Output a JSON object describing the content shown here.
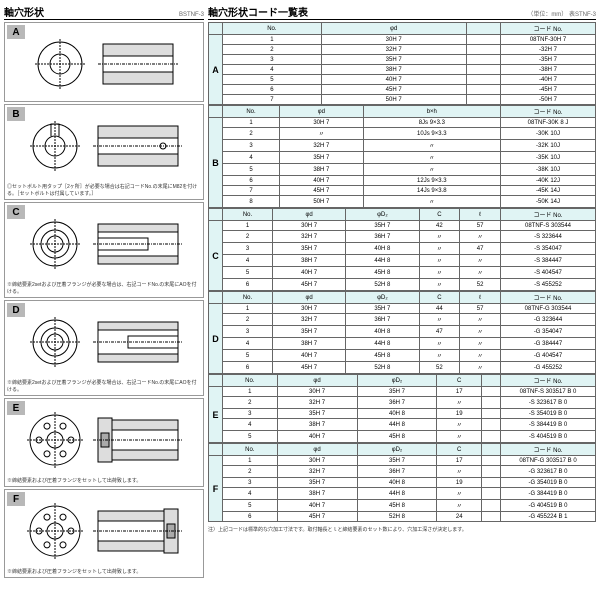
{
  "left": {
    "title": "軸穴形状",
    "code": "BSTNF-3",
    "sections": [
      {
        "id": "A",
        "labels": [
          "フランジ側",
          "パネ側"
        ],
        "dim": "φd"
      },
      {
        "id": "B",
        "labels": [
          "b",
          "φd",
          "参2-M8",
          "16"
        ],
        "note": "◎セットボルト用タップ［2ヶ所］が必要な場合は右記コードNo.の末尾にM82を付ける。［セットボルトは付属しています。］",
        "dims": [
          "b",
          "φd"
        ]
      },
      {
        "id": "C",
        "labels": [
          "C",
          "φD₂",
          "φd"
        ],
        "note": "※締結要素2setおよび圧着フランジが必要な場合は、右記コードNo.の末尾にAOを付ける。"
      },
      {
        "id": "D",
        "labels": [
          "C",
          "φd",
          "φD₂"
        ],
        "note": "※締結要素2setおよび圧着フランジが必要な場合は、右記コードNo.の末尾にAOを付ける。"
      },
      {
        "id": "E",
        "labels": [
          "C",
          "φD₂"
        ],
        "note": "※締結要素および圧着フランジをセットして出荷致します。"
      },
      {
        "id": "F",
        "labels": [
          "C",
          "φD₂"
        ],
        "note": "※締結要素および圧着フランジをセットして出荷致します。"
      }
    ]
  },
  "right": {
    "title": "軸穴形状コード一覧表",
    "unit": "（単位：mm）",
    "code": "表STNF-3",
    "groups": [
      {
        "id": "A",
        "headers": [
          "No.",
          "φd",
          "",
          "コード No."
        ],
        "rows": [
          [
            "1",
            "30H 7",
            "",
            "08TNF-30H 7"
          ],
          [
            "2",
            "32H 7",
            "",
            "-32H 7"
          ],
          [
            "3",
            "35H 7",
            "",
            "-35H 7"
          ],
          [
            "4",
            "38H 7",
            "",
            "-38H 7"
          ],
          [
            "5",
            "40H 7",
            "",
            "-40H 7"
          ],
          [
            "6",
            "45H 7",
            "",
            "-45H 7"
          ],
          [
            "7",
            "50H 7",
            "",
            "-50H 7"
          ]
        ]
      },
      {
        "id": "B",
        "headers": [
          "No.",
          "φd",
          "b×h",
          "コード No."
        ],
        "rows": [
          [
            "1",
            "30H 7",
            "8Js 9×3.3",
            "08TNF-30K 8 J"
          ],
          [
            "2",
            "〃",
            "10Js 9×3.3",
            "-30K 10J"
          ],
          [
            "3",
            "32H 7",
            "〃",
            "-32K 10J"
          ],
          [
            "4",
            "35H 7",
            "〃",
            "-35K 10J"
          ],
          [
            "5",
            "38H 7",
            "〃",
            "-38K 10J"
          ],
          [
            "6",
            "40H 7",
            "12Js 9×3.3",
            "-40K 12J"
          ],
          [
            "7",
            "45H 7",
            "14Js 9×3.8",
            "-45K 14J"
          ],
          [
            "8",
            "50H 7",
            "〃",
            "-50K 14J"
          ]
        ]
      },
      {
        "id": "C",
        "headers": [
          "No.",
          "φd",
          "φD₂",
          "C",
          "ℓ",
          "コード No."
        ],
        "rows": [
          [
            "1",
            "30H 7",
            "35H 7",
            "42",
            "57",
            "08TNF-S 303544"
          ],
          [
            "2",
            "32H 7",
            "36H 7",
            "〃",
            "〃",
            "-S 323644"
          ],
          [
            "3",
            "35H 7",
            "40H 8",
            "〃",
            "47",
            "-S 354047"
          ],
          [
            "4",
            "38H 7",
            "44H 8",
            "〃",
            "〃",
            "-S 384447"
          ],
          [
            "5",
            "40H 7",
            "45H 8",
            "〃",
            "〃",
            "-S 404547"
          ],
          [
            "6",
            "45H 7",
            "52H 8",
            "〃",
            "52",
            "-S 455252"
          ]
        ]
      },
      {
        "id": "D",
        "headers": [
          "No.",
          "φd",
          "φD₂",
          "C",
          "ℓ",
          "コード No."
        ],
        "rows": [
          [
            "1",
            "30H 7",
            "35H 7",
            "44",
            "57",
            "08TNF-G 303544"
          ],
          [
            "2",
            "32H 7",
            "36H 7",
            "〃",
            "〃",
            "-G 323644"
          ],
          [
            "3",
            "35H 7",
            "40H 8",
            "47",
            "〃",
            "-G 354047"
          ],
          [
            "4",
            "38H 7",
            "44H 8",
            "〃",
            "〃",
            "-G 384447"
          ],
          [
            "5",
            "40H 7",
            "45H 8",
            "〃",
            "〃",
            "-G 404547"
          ],
          [
            "6",
            "45H 7",
            "52H 8",
            "52",
            "〃",
            "-G 455252"
          ]
        ]
      },
      {
        "id": "E",
        "headers": [
          "No.",
          "φd",
          "φD₂",
          "C",
          "",
          "コード No."
        ],
        "rows": [
          [
            "1",
            "30H 7",
            "35H 7",
            "17",
            "",
            "08TNF-S 303517 B 0"
          ],
          [
            "2",
            "32H 7",
            "36H 7",
            "〃",
            "",
            "-S 323617 B 0"
          ],
          [
            "3",
            "35H 7",
            "40H 8",
            "19",
            "",
            "-S 354019 B 0"
          ],
          [
            "4",
            "38H 7",
            "44H 8",
            "〃",
            "",
            "-S 384419 B 0"
          ],
          [
            "5",
            "40H 7",
            "45H 8",
            "〃",
            "",
            "-S 404519 B 0"
          ]
        ]
      },
      {
        "id": "F",
        "headers": [
          "No.",
          "φd",
          "φD₂",
          "C",
          "",
          "コード No."
        ],
        "rows": [
          [
            "1",
            "30H 7",
            "35H 7",
            "17",
            "",
            "08TNF-G 303517 B 0"
          ],
          [
            "2",
            "32H 7",
            "36H 7",
            "〃",
            "",
            "-G 323617 B 0"
          ],
          [
            "3",
            "35H 7",
            "40H 8",
            "19",
            "",
            "-G 354019 B 0"
          ],
          [
            "4",
            "38H 7",
            "44H 8",
            "〃",
            "",
            "-G 384419 B 0"
          ],
          [
            "5",
            "40H 7",
            "45H 8",
            "〃",
            "",
            "-G 404519 B 0"
          ],
          [
            "6",
            "45H 7",
            "52H 8",
            "24",
            "",
            "-G 455224 B 1"
          ]
        ]
      }
    ],
    "footnote": "注）上記コードは標準的な穴加工寸法です。取付軸長とｌと締結要素のセット数により、穴加工深さが決定します。"
  }
}
